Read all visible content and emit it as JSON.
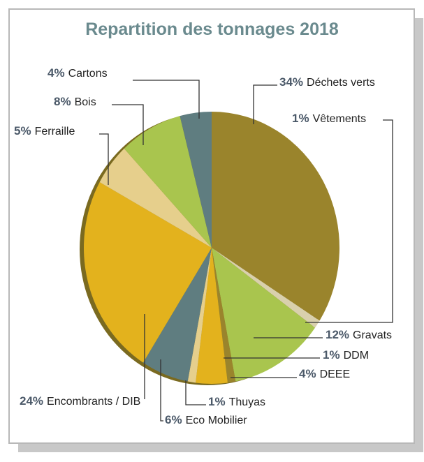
{
  "chart_data": {
    "type": "pie",
    "title": "Repartition des tonnages 2018",
    "categories": [
      "Déchets verts",
      "Vêtements",
      "Gravats",
      "DDM",
      "DEEE",
      "Thuyas",
      "Eco Mobilier",
      "Encombrants / DIB",
      "Ferraille",
      "Bois",
      "Cartons"
    ],
    "values": [
      34,
      1,
      12,
      1,
      4,
      1,
      6,
      24,
      5,
      8,
      4
    ],
    "value_labels": [
      "34%",
      "1%",
      "12%",
      "1%",
      "4%",
      "1%",
      "6%",
      "24%",
      "5%",
      "8%",
      "4%"
    ],
    "colors": [
      "#9a842c",
      "#d9d0ad",
      "#a9c54e",
      "#9a842c",
      "#e3b21d",
      "#e6cf8c",
      "#5f7d80",
      "#e3b21d",
      "#e6cf8c",
      "#a9c54e",
      "#5f7d80"
    ]
  }
}
